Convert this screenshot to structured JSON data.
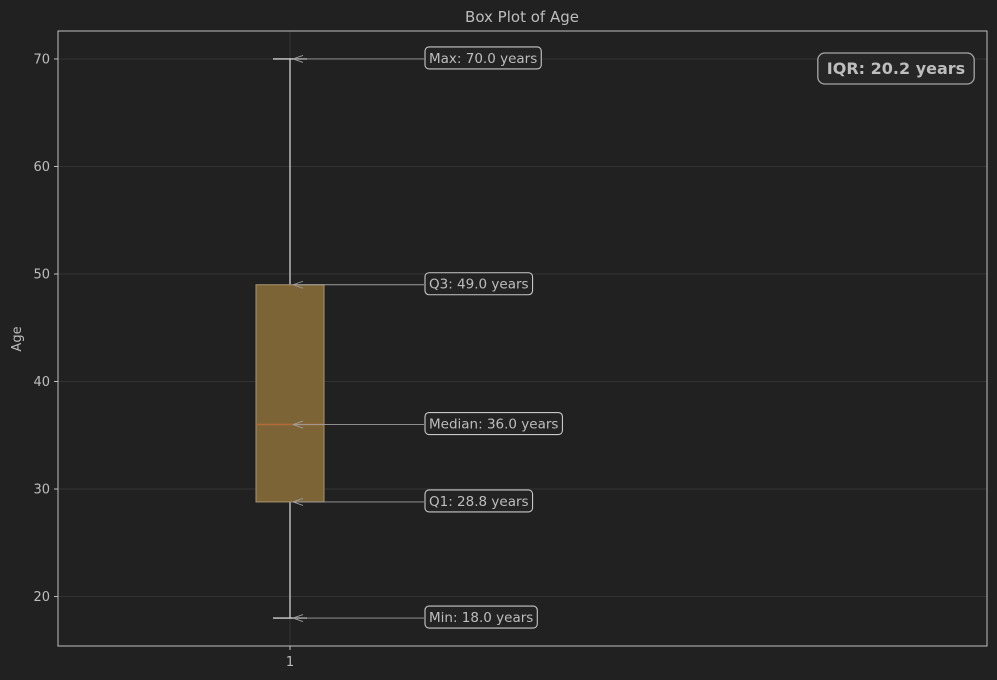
{
  "chart_data": {
    "type": "box",
    "title": "Box Plot of Age",
    "xlabel": "",
    "ylabel": "Age",
    "xtick_labels": [
      "1"
    ],
    "yticks": [
      20,
      30,
      40,
      50,
      60,
      70
    ],
    "ylim": [
      15.4,
      72.6
    ],
    "grid": true,
    "box": {
      "category": "1",
      "min": 18.0,
      "q1": 28.8,
      "median": 36.0,
      "q3": 49.0,
      "max": 70.0
    },
    "annotations": [
      {
        "key": "max",
        "text": "Max: 70.0 years"
      },
      {
        "key": "q3",
        "text": "Q3: 49.0 years"
      },
      {
        "key": "median",
        "text": "Median: 36.0 years"
      },
      {
        "key": "q1",
        "text": "Q1: 28.8 years"
      },
      {
        "key": "min",
        "text": "Min: 18.0 years"
      }
    ],
    "iqr_label": "IQR: 20.2 years",
    "colors": {
      "background": "#212121",
      "box_fill": "#7d6436",
      "box_edge": "#a8956f",
      "median_line": "#b06a3c",
      "whisker": "#cfcfcf",
      "grid": "#323232",
      "text": "#bdbdbd",
      "spine": "#bfbfbf"
    }
  }
}
